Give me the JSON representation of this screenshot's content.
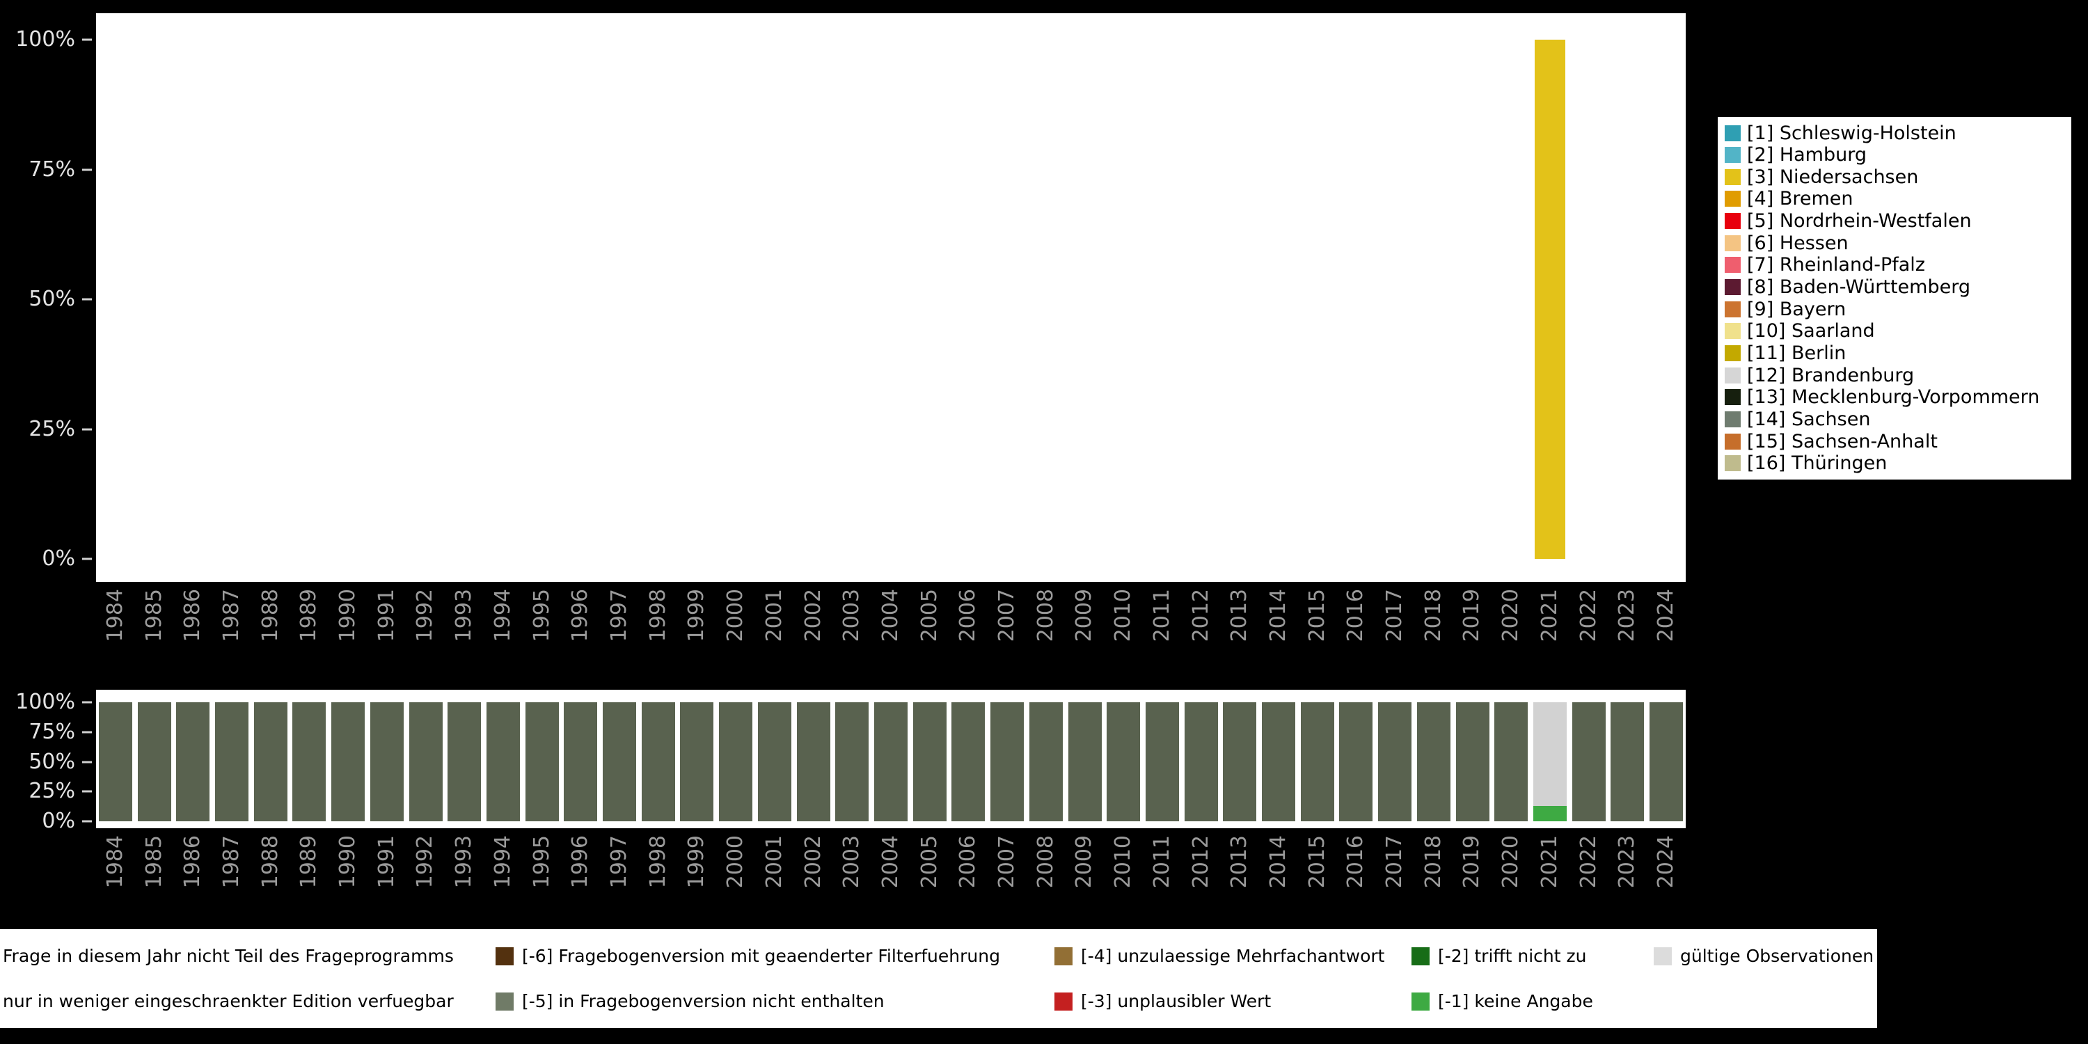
{
  "colors": {
    "page_bg": "#000000",
    "plot_bg": "#ffffff",
    "y_tick_text": "#e4e4e4",
    "x_tick_text": "#9b9b9b",
    "tick_mark": "#d0d0d0"
  },
  "y_ticks": [
    "100%",
    "75%",
    "50%",
    "25%",
    "0%"
  ],
  "years": [
    "1984",
    "1985",
    "1986",
    "1987",
    "1988",
    "1989",
    "1990",
    "1991",
    "1992",
    "1993",
    "1994",
    "1995",
    "1996",
    "1997",
    "1998",
    "1999",
    "2000",
    "2001",
    "2002",
    "2003",
    "2004",
    "2005",
    "2006",
    "2007",
    "2008",
    "2009",
    "2010",
    "2011",
    "2012",
    "2013",
    "2014",
    "2015",
    "2016",
    "2017",
    "2018",
    "2019",
    "2020",
    "2021",
    "2022",
    "2023",
    "2024"
  ],
  "top_chart": {
    "bars": [
      {
        "year": "2021",
        "segments": [
          {
            "name": "[3] Niedersachsen",
            "color": "#e3c219",
            "value": 100
          }
        ]
      }
    ]
  },
  "states_legend": [
    {
      "label": "[1] Schleswig-Holstein",
      "color": "#2f9fb3"
    },
    {
      "label": "[2] Hamburg",
      "color": "#52b4c7"
    },
    {
      "label": "[3] Niedersachsen",
      "color": "#e3c219"
    },
    {
      "label": "[4] Bremen",
      "color": "#e09c00"
    },
    {
      "label": "[5] Nordrhein-Westfalen",
      "color": "#e8000d"
    },
    {
      "label": "[6] Hessen",
      "color": "#f4c483"
    },
    {
      "label": "[7] Rheinland-Pfalz",
      "color": "#ef5e6e"
    },
    {
      "label": "[8] Baden-Württemberg",
      "color": "#5c1a31"
    },
    {
      "label": "[9] Bayern",
      "color": "#cc7430"
    },
    {
      "label": "[10] Saarland",
      "color": "#f0e18c"
    },
    {
      "label": "[11] Berlin",
      "color": "#c3a900"
    },
    {
      "label": "[12] Brandenburg",
      "color": "#d6d6d6"
    },
    {
      "label": "[13] Mecklenburg-Vorpommern",
      "color": "#161f0e"
    },
    {
      "label": "[14] Sachsen",
      "color": "#6f7c6f"
    },
    {
      "label": "[15] Sachsen-Anhalt",
      "color": "#c66e2b"
    },
    {
      "label": "[16] Thüringen",
      "color": "#bfbb8d"
    }
  ],
  "bottom_chart": {
    "default_bar": {
      "name": "Frage in diesem Jahr nicht Teil des Frageprogramms",
      "color": "#59624f",
      "value": 100
    },
    "special_bars": [
      {
        "year": "2021",
        "segments": [
          {
            "name": "gültige Observationen",
            "color": "#d2d2d2",
            "value": 87
          },
          {
            "name": "[-1] keine Angabe",
            "color": "#3eaa43",
            "value": 13
          }
        ]
      }
    ]
  },
  "missing_legend": {
    "rows": [
      [
        {
          "label": "Frage in diesem Jahr nicht Teil des Frageprogramms",
          "color": null
        },
        {
          "label": "[-6] Fragebogenversion mit geaenderter Filterfuehrung",
          "color": "#53310f"
        },
        {
          "label": "[-4] unzulaessige Mehrfachantwort",
          "color": "#926f35"
        },
        {
          "label": "[-2] trifft nicht zu",
          "color": "#176d17"
        },
        {
          "label": "gültige Observationen",
          "color": "#dcdcdc"
        }
      ],
      [
        {
          "label": "nur in weniger eingeschraenkter Edition verfuegbar",
          "color": null
        },
        {
          "label": "[-5] in Fragebogenversion nicht enthalten",
          "color": "#707b67"
        },
        {
          "label": "[-3] unplausibler Wert",
          "color": "#c42020"
        },
        {
          "label": "[-1] keine Angabe",
          "color": "#3eaa43"
        }
      ]
    ]
  },
  "chart_data": [
    {
      "type": "bar",
      "stacked": true,
      "title": "",
      "xlabel": "",
      "ylabel": "",
      "ylim": [
        0,
        100
      ],
      "grid": false,
      "legend_position": "right",
      "categories": [
        "1984",
        "1985",
        "1986",
        "1987",
        "1988",
        "1989",
        "1990",
        "1991",
        "1992",
        "1993",
        "1994",
        "1995",
        "1996",
        "1997",
        "1998",
        "1999",
        "2000",
        "2001",
        "2002",
        "2003",
        "2004",
        "2005",
        "2006",
        "2007",
        "2008",
        "2009",
        "2010",
        "2011",
        "2012",
        "2013",
        "2014",
        "2015",
        "2016",
        "2017",
        "2018",
        "2019",
        "2020",
        "2021",
        "2022",
        "2023",
        "2024"
      ],
      "legend": [
        "[1] Schleswig-Holstein",
        "[2] Hamburg",
        "[3] Niedersachsen",
        "[4] Bremen",
        "[5] Nordrhein-Westfalen",
        "[6] Hessen",
        "[7] Rheinland-Pfalz",
        "[8] Baden-Württemberg",
        "[9] Bayern",
        "[10] Saarland",
        "[11] Berlin",
        "[12] Brandenburg",
        "[13] Mecklenburg-Vorpommern",
        "[14] Sachsen",
        "[15] Sachsen-Anhalt",
        "[16] Thüringen"
      ],
      "series": [
        {
          "name": "[3] Niedersachsen",
          "values": [
            0,
            0,
            0,
            0,
            0,
            0,
            0,
            0,
            0,
            0,
            0,
            0,
            0,
            0,
            0,
            0,
            0,
            0,
            0,
            0,
            0,
            0,
            0,
            0,
            0,
            0,
            0,
            0,
            0,
            0,
            0,
            0,
            0,
            0,
            0,
            0,
            0,
            100,
            0,
            0,
            0
          ]
        }
      ]
    },
    {
      "type": "bar",
      "stacked": true,
      "title": "",
      "xlabel": "",
      "ylabel": "",
      "ylim": [
        0,
        100
      ],
      "grid": false,
      "legend_position": "bottom",
      "categories": [
        "1984",
        "1985",
        "1986",
        "1987",
        "1988",
        "1989",
        "1990",
        "1991",
        "1992",
        "1993",
        "1994",
        "1995",
        "1996",
        "1997",
        "1998",
        "1999",
        "2000",
        "2001",
        "2002",
        "2003",
        "2004",
        "2005",
        "2006",
        "2007",
        "2008",
        "2009",
        "2010",
        "2011",
        "2012",
        "2013",
        "2014",
        "2015",
        "2016",
        "2017",
        "2018",
        "2019",
        "2020",
        "2021",
        "2022",
        "2023",
        "2024"
      ],
      "series": [
        {
          "name": "Frage in diesem Jahr nicht Teil des Frageprogramms",
          "values": [
            100,
            100,
            100,
            100,
            100,
            100,
            100,
            100,
            100,
            100,
            100,
            100,
            100,
            100,
            100,
            100,
            100,
            100,
            100,
            100,
            100,
            100,
            100,
            100,
            100,
            100,
            100,
            100,
            100,
            100,
            100,
            100,
            100,
            100,
            100,
            100,
            100,
            0,
            100,
            100,
            100
          ]
        },
        {
          "name": "gültige Observationen",
          "values": [
            0,
            0,
            0,
            0,
            0,
            0,
            0,
            0,
            0,
            0,
            0,
            0,
            0,
            0,
            0,
            0,
            0,
            0,
            0,
            0,
            0,
            0,
            0,
            0,
            0,
            0,
            0,
            0,
            0,
            0,
            0,
            0,
            0,
            0,
            0,
            0,
            0,
            87,
            0,
            0,
            0
          ]
        },
        {
          "name": "[-1] keine Angabe",
          "values": [
            0,
            0,
            0,
            0,
            0,
            0,
            0,
            0,
            0,
            0,
            0,
            0,
            0,
            0,
            0,
            0,
            0,
            0,
            0,
            0,
            0,
            0,
            0,
            0,
            0,
            0,
            0,
            0,
            0,
            0,
            0,
            0,
            0,
            0,
            0,
            0,
            0,
            13,
            0,
            0,
            0
          ]
        }
      ]
    }
  ]
}
